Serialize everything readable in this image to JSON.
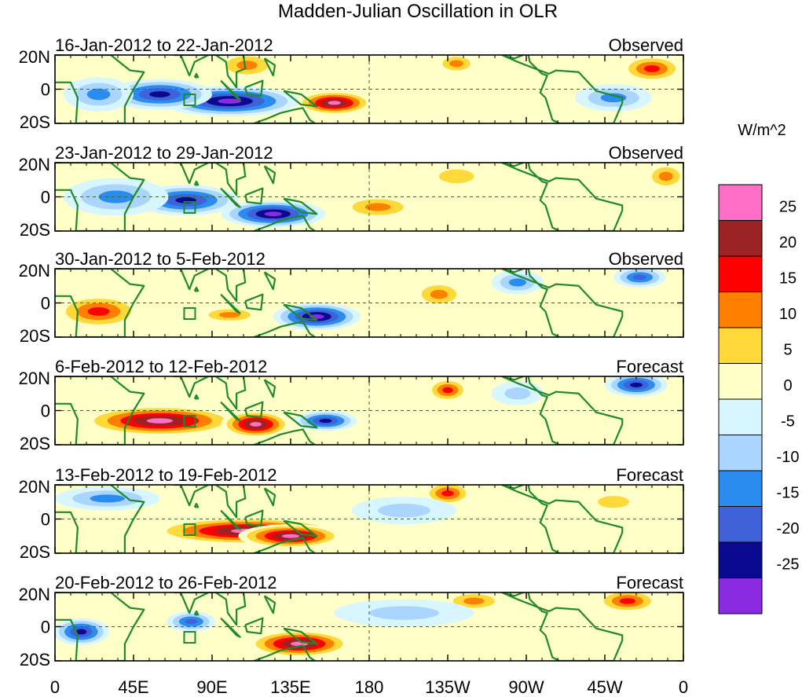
{
  "chart_data": {
    "type": "heatmap",
    "title": "Madden-Julian Oscillation in OLR",
    "units": "W/m^2",
    "x_ticks": [
      "0",
      "45E",
      "90E",
      "135E",
      "180",
      "135W",
      "90W",
      "45W",
      "0"
    ],
    "y_ticks": [
      "20N",
      "0",
      "20S"
    ],
    "colorbar": {
      "levels": [
        "25",
        "20",
        "15",
        "10",
        "5",
        "0",
        "-5",
        "-10",
        "-15",
        "-20",
        "-25"
      ],
      "colors": [
        "#ff6ec7",
        "#9b2323",
        "#ff0000",
        "#ff7f00",
        "#ffd93a",
        "#ffffc8",
        "#d8f6ff",
        "#a9d5ff",
        "#2b8cf0",
        "#3f62d9",
        "#0a0a90",
        "#8a2be2"
      ]
    },
    "panels": [
      {
        "period": "16-Jan-2012 to 22-Jan-2012",
        "kind": "Observed",
        "blobs": [
          {
            "lon": 100,
            "lat": -7,
            "rx": 40,
            "ry": 9,
            "value": -30
          },
          {
            "lon": 60,
            "lat": -3,
            "rx": 30,
            "ry": 9,
            "value": -22
          },
          {
            "lon": 25,
            "lat": -3,
            "rx": 20,
            "ry": 10,
            "value": -14
          },
          {
            "lon": 160,
            "lat": -8,
            "rx": 22,
            "ry": 7,
            "value": 27
          },
          {
            "lon": 110,
            "lat": 14,
            "rx": 18,
            "ry": 8,
            "value": 13
          },
          {
            "lon": 342,
            "lat": 12,
            "rx": 18,
            "ry": 8,
            "value": 17
          },
          {
            "lon": 230,
            "lat": 15,
            "rx": 12,
            "ry": 6,
            "value": 12
          },
          {
            "lon": 320,
            "lat": -5,
            "rx": 22,
            "ry": 8,
            "value": -12
          }
        ]
      },
      {
        "period": "23-Jan-2012 to 29-Jan-2012",
        "kind": "Observed",
        "blobs": [
          {
            "lon": 125,
            "lat": -10,
            "rx": 30,
            "ry": 8,
            "value": -30
          },
          {
            "lon": 75,
            "lat": -2,
            "rx": 30,
            "ry": 9,
            "value": -22
          },
          {
            "lon": 35,
            "lat": 0,
            "rx": 30,
            "ry": 11,
            "value": -12
          },
          {
            "lon": 185,
            "lat": -6,
            "rx": 22,
            "ry": 7,
            "value": 15
          },
          {
            "lon": 230,
            "lat": 12,
            "rx": 20,
            "ry": 8,
            "value": 9
          },
          {
            "lon": 350,
            "lat": 12,
            "rx": 12,
            "ry": 8,
            "value": 12
          },
          {
            "lon": 300,
            "lat": -8,
            "rx": 40,
            "ry": 10,
            "value": 5
          }
        ]
      },
      {
        "period": "30-Jan-2012 to 5-Feb-2012",
        "kind": "Observed",
        "blobs": [
          {
            "lon": 150,
            "lat": -8,
            "rx": 25,
            "ry": 8,
            "value": -28
          },
          {
            "lon": 25,
            "lat": -5,
            "rx": 25,
            "ry": 10,
            "value": 20
          },
          {
            "lon": 100,
            "lat": -7,
            "rx": 18,
            "ry": 5,
            "value": 14
          },
          {
            "lon": 220,
            "lat": 5,
            "rx": 15,
            "ry": 8,
            "value": 12
          },
          {
            "lon": 265,
            "lat": 12,
            "rx": 15,
            "ry": 7,
            "value": -13
          },
          {
            "lon": 335,
            "lat": 15,
            "rx": 15,
            "ry": 6,
            "value": -20
          },
          {
            "lon": 300,
            "lat": -8,
            "rx": 25,
            "ry": 8,
            "value": 5
          }
        ]
      },
      {
        "period": "6-Feb-2012 to 12-Feb-2012",
        "kind": "Forecast",
        "blobs": [
          {
            "lon": 60,
            "lat": -6,
            "rx": 45,
            "ry": 9,
            "value": 28
          },
          {
            "lon": 115,
            "lat": -8,
            "rx": 20,
            "ry": 8,
            "value": 26
          },
          {
            "lon": 155,
            "lat": -6,
            "rx": 18,
            "ry": 6,
            "value": -22
          },
          {
            "lon": 225,
            "lat": 12,
            "rx": 12,
            "ry": 7,
            "value": 17
          },
          {
            "lon": 333,
            "lat": 15,
            "rx": 18,
            "ry": 7,
            "value": -22
          },
          {
            "lon": 265,
            "lat": 10,
            "rx": 15,
            "ry": 7,
            "value": -10
          }
        ]
      },
      {
        "period": "13-Feb-2012 to 19-Feb-2012",
        "kind": "Forecast",
        "blobs": [
          {
            "lon": 110,
            "lat": -7,
            "rx": 55,
            "ry": 8,
            "value": 26
          },
          {
            "lon": 135,
            "lat": -10,
            "rx": 30,
            "ry": 7,
            "value": 28
          },
          {
            "lon": 225,
            "lat": 15,
            "rx": 14,
            "ry": 7,
            "value": 17
          },
          {
            "lon": 30,
            "lat": 12,
            "rx": 30,
            "ry": 7,
            "value": -12
          },
          {
            "lon": 200,
            "lat": 5,
            "rx": 30,
            "ry": 8,
            "value": -9
          },
          {
            "lon": 320,
            "lat": 10,
            "rx": 18,
            "ry": 7,
            "value": 8
          }
        ]
      },
      {
        "period": "20-Feb-2012 to 26-Feb-2012",
        "kind": "Forecast",
        "blobs": [
          {
            "lon": 140,
            "lat": -10,
            "rx": 30,
            "ry": 8,
            "value": 26
          },
          {
            "lon": 15,
            "lat": -3,
            "rx": 16,
            "ry": 8,
            "value": -22
          },
          {
            "lon": 78,
            "lat": 3,
            "rx": 14,
            "ry": 6,
            "value": -20
          },
          {
            "lon": 240,
            "lat": 15,
            "rx": 18,
            "ry": 6,
            "value": 12
          },
          {
            "lon": 328,
            "lat": 15,
            "rx": 18,
            "ry": 7,
            "value": 16
          },
          {
            "lon": 200,
            "lat": 8,
            "rx": 40,
            "ry": 8,
            "value": -9
          }
        ]
      }
    ]
  }
}
